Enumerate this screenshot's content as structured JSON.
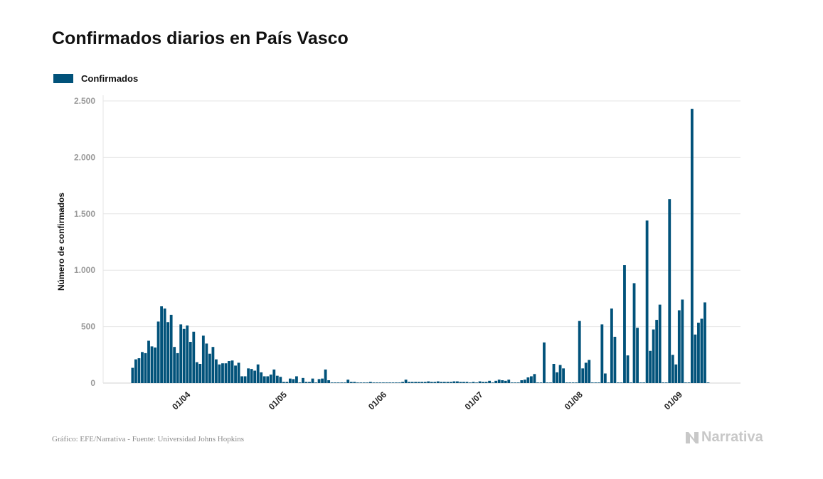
{
  "title": "Confirmados diarios en País Vasco",
  "footer": "Gráfico: EFE/Narrativa - Fuente: Universidad Johns Hopkins",
  "brand": "Narrativa",
  "colors": {
    "bar": "#01527a",
    "grid": "#e6e6e6",
    "tick_text": "#9a9a9a"
  },
  "chart_data": {
    "type": "bar",
    "title": "Confirmados diarios en País Vasco",
    "xlabel": "",
    "ylabel": "Número de confirmados",
    "ylim": [
      0,
      2500
    ],
    "yticks": [
      0,
      500,
      1000,
      1500,
      2000,
      2500
    ],
    "ytick_labels": [
      "0",
      "500",
      "1.000",
      "1.500",
      "2.000",
      "2.500"
    ],
    "xticks": [
      {
        "label": "01/04",
        "index": 17
      },
      {
        "label": "01/05",
        "index": 47
      },
      {
        "label": "01/06",
        "index": 78
      },
      {
        "label": "01/07",
        "index": 108
      },
      {
        "label": "01/08",
        "index": 139
      },
      {
        "label": "01/09",
        "index": 170
      }
    ],
    "grid": true,
    "legend_position": "top-left",
    "series": [
      {
        "name": "Confirmados",
        "values": [
          135,
          210,
          220,
          275,
          265,
          375,
          325,
          315,
          545,
          680,
          660,
          540,
          605,
          320,
          265,
          520,
          480,
          510,
          365,
          455,
          185,
          170,
          420,
          350,
          260,
          320,
          210,
          165,
          175,
          175,
          195,
          200,
          155,
          180,
          60,
          60,
          130,
          125,
          110,
          165,
          95,
          60,
          60,
          75,
          120,
          65,
          55,
          10,
          10,
          40,
          35,
          60,
          5,
          45,
          10,
          10,
          40,
          5,
          35,
          40,
          120,
          25,
          5,
          5,
          5,
          5,
          5,
          30,
          10,
          10,
          5,
          5,
          5,
          5,
          10,
          5,
          5,
          5,
          5,
          5,
          5,
          5,
          5,
          5,
          10,
          30,
          10,
          10,
          10,
          10,
          10,
          10,
          15,
          10,
          10,
          15,
          10,
          10,
          10,
          10,
          15,
          15,
          10,
          10,
          10,
          5,
          10,
          5,
          15,
          10,
          10,
          20,
          5,
          20,
          30,
          25,
          20,
          30,
          5,
          5,
          5,
          25,
          30,
          50,
          60,
          80,
          5,
          5,
          360,
          5,
          5,
          170,
          95,
          160,
          130,
          5,
          5,
          5,
          5,
          550,
          130,
          180,
          205,
          5,
          5,
          5,
          520,
          85,
          5,
          660,
          410,
          5,
          5,
          1045,
          245,
          5,
          885,
          490,
          5,
          5,
          1440,
          285,
          475,
          560,
          695,
          5,
          5,
          1630,
          250,
          165,
          645,
          740,
          5,
          5,
          2430,
          430,
          535,
          570,
          715,
          5
        ]
      }
    ]
  }
}
